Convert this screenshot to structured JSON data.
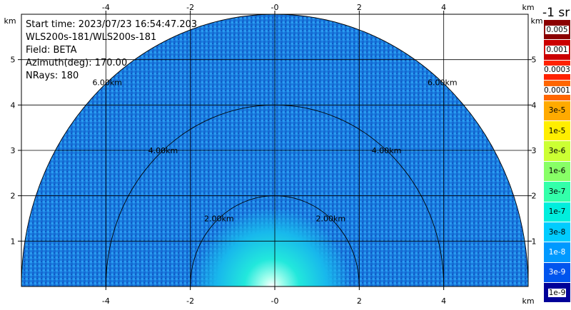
{
  "info": {
    "start_time": "Start time: 2023/07/23 16:54:47.203",
    "instrument": "WLS200s-181/WLS200s-181",
    "field": "Field: BETA",
    "azimuth": "Azimuth(deg): 170.00",
    "nrays": "NRays: 180"
  },
  "units_label": "-1 sr",
  "axis_unit": "km",
  "colors": {
    "axis": "#000000",
    "grid": "#000000"
  },
  "chart_data": {
    "type": "heatmap",
    "title": "",
    "field": "BETA",
    "xlim": [
      -6,
      6
    ],
    "ylim": [
      0,
      6
    ],
    "x_ticks": [
      -4,
      -2,
      0,
      2,
      4
    ],
    "x_tick_labels": [
      "-4",
      "-2",
      "-0",
      "2",
      "4"
    ],
    "y_ticks": [
      1,
      2,
      3,
      4,
      5
    ],
    "y_tick_labels": [
      "1",
      "2",
      "3",
      "4",
      "5"
    ],
    "range_rings_km": [
      2,
      4,
      6
    ],
    "ring_labels": [
      "2.00km",
      "4.00km",
      "6.00km"
    ],
    "grid": true,
    "colorbar": {
      "labels": [
        "0.005",
        "0.001",
        "0.0003",
        "0.0001",
        "3e-5",
        "1e-5",
        "3e-6",
        "1e-6",
        "3e-7",
        "1e-7",
        "3e-8",
        "1e-8",
        "3e-9",
        "1e-9"
      ],
      "colors": [
        "#8b0000",
        "#cc0000",
        "#ff2200",
        "#ff6600",
        "#ffaa00",
        "#ffee00",
        "#ccff33",
        "#88ff66",
        "#33ffaa",
        "#00eedd",
        "#00ccff",
        "#0099ff",
        "#0055ee",
        "#000099"
      ]
    }
  }
}
